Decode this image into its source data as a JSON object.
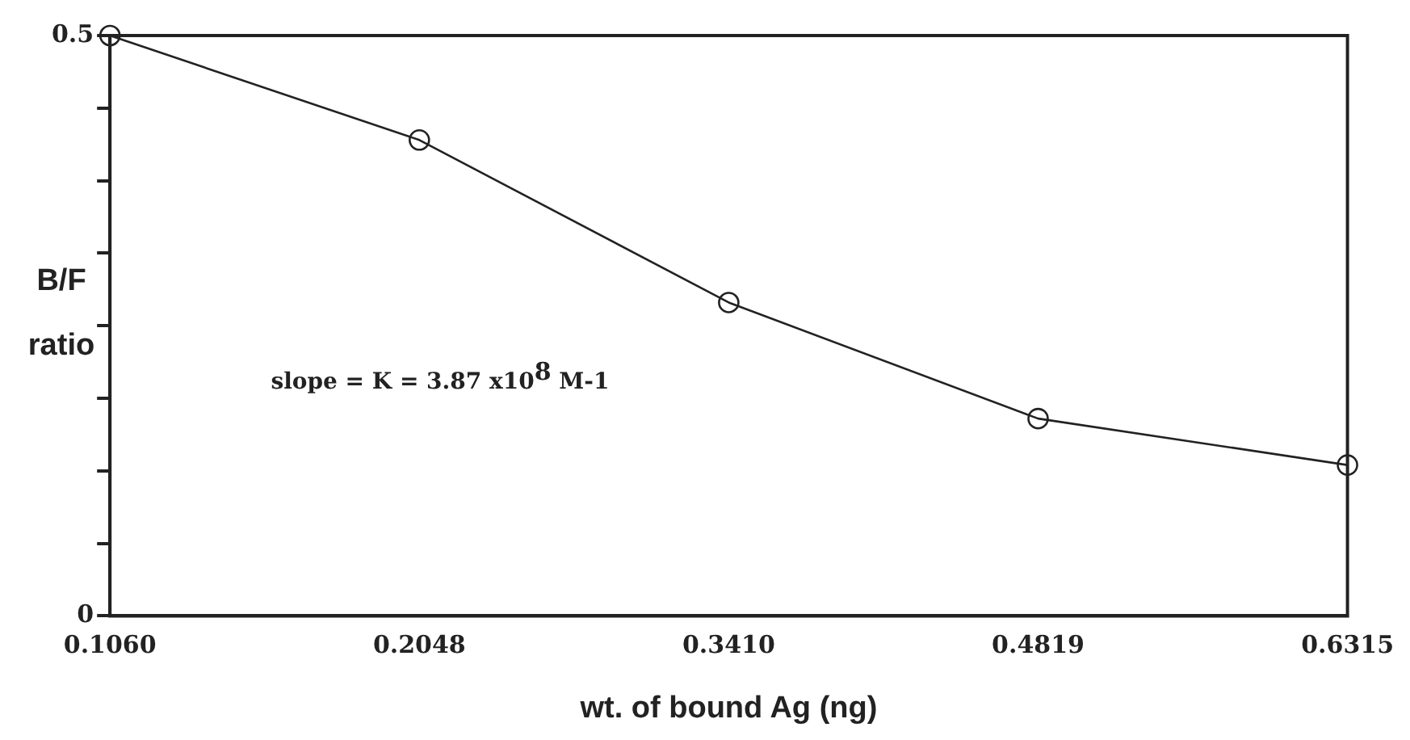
{
  "chart_data": {
    "type": "line",
    "xlabel": "wt. of bound Ag (ng)",
    "ylabel": "B/F ratio",
    "categories": [
      "0.1060",
      "0.2048",
      "0.3410",
      "0.4819",
      "0.6315"
    ],
    "series": [
      {
        "color": "#222222",
        "values": [
          0.5,
          0.41,
          0.27,
          0.17,
          0.13
        ]
      }
    ],
    "ylim": [
      0,
      0.5
    ],
    "yticks": [
      0,
      {
        "value": 0.0625,
        "label": null
      },
      {
        "value": 0.125,
        "label": null
      },
      {
        "value": 0.1875,
        "label": null
      },
      {
        "value": 0.25,
        "label": null
      },
      {
        "value": 0.3125,
        "label": null
      },
      {
        "value": 0.375,
        "label": null
      },
      {
        "value": 0.4375,
        "label": null
      },
      0.5
    ],
    "marker": "circle",
    "line_style": "solid",
    "grid": false,
    "legend": false,
    "annotations": [
      "slope = K = 3.87 x10$^{8}$ M-1"
    ]
  }
}
